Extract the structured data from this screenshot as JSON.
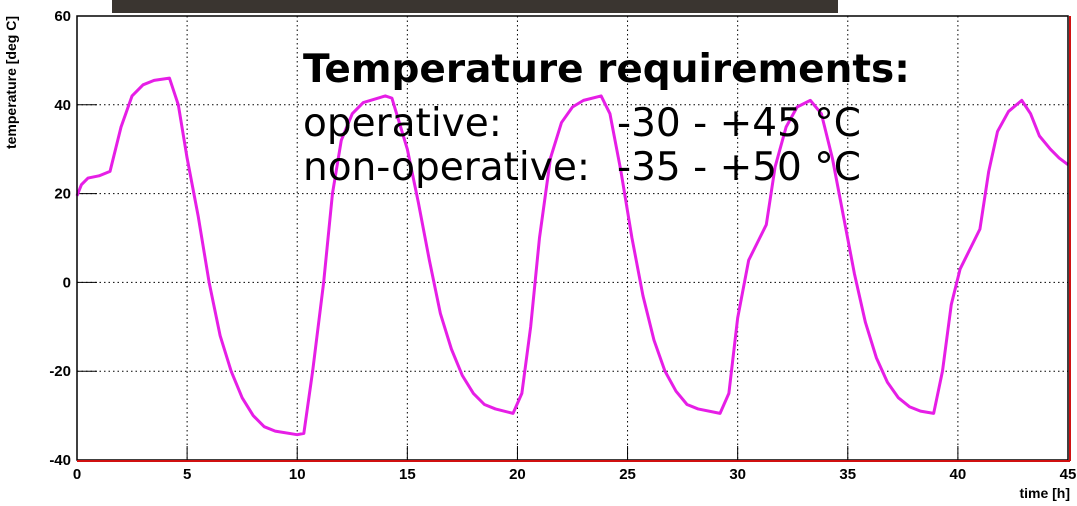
{
  "chart_data": {
    "type": "line",
    "x_label": "time [h]",
    "y_label": "temperature [deg C]",
    "xlim": [
      0,
      45
    ],
    "ylim": [
      -40,
      60
    ],
    "xticks": [
      0,
      5,
      10,
      15,
      20,
      25,
      30,
      35,
      40,
      45
    ],
    "yticks": [
      -40,
      -20,
      0,
      20,
      40,
      60
    ],
    "grid": true,
    "annotation": {
      "title": "Temperature requirements:",
      "rows": [
        {
          "label": "operative:",
          "value": "-30 - +45 °C"
        },
        {
          "label": "non-operative:",
          "value": "-35 - +50 °C"
        }
      ]
    },
    "series": [
      {
        "color": "#e61ee6",
        "x": [
          0,
          0.2,
          0.5,
          1,
          1.5,
          2,
          2.5,
          3,
          3.5,
          4.2,
          4.6,
          5,
          5.5,
          6,
          6.5,
          7,
          7.5,
          8,
          8.5,
          9,
          10,
          10.3,
          10.7,
          11.2,
          11.6,
          12,
          12.5,
          13,
          14,
          14.3,
          15,
          15.5,
          16,
          16.5,
          17,
          17.5,
          18,
          18.5,
          19,
          19.8,
          20.2,
          20.6,
          21,
          21.5,
          22,
          22.5,
          23,
          23.8,
          24.2,
          24.7,
          25.2,
          25.7,
          26.2,
          26.7,
          27.2,
          27.7,
          28.2,
          29.2,
          29.6,
          30,
          30.5,
          31,
          31.3,
          31.7,
          32.2,
          32.7,
          33.3,
          33.8,
          34.3,
          34.8,
          35.3,
          35.8,
          36.3,
          36.8,
          37.3,
          37.8,
          38.3,
          38.9,
          39.3,
          39.7,
          40.1,
          40.6,
          41,
          41.4,
          41.8,
          42.3,
          42.9,
          43.3,
          43.7,
          44.2,
          44.6,
          45
        ],
        "values": [
          19.5,
          22,
          23.5,
          24,
          25,
          35,
          42,
          44.5,
          45.5,
          46,
          40,
          28,
          15,
          0,
          -12,
          -20,
          -26,
          -30,
          -32.5,
          -33.5,
          -34.3,
          -34,
          -20,
          0,
          20,
          32,
          38,
          40.5,
          42,
          41.5,
          30,
          18,
          5,
          -7,
          -15,
          -21,
          -25,
          -27.5,
          -28.5,
          -29.5,
          -25,
          -10,
          10,
          28,
          36,
          39.5,
          41,
          42,
          38,
          25,
          10,
          -3,
          -13,
          -20,
          -24.5,
          -27.5,
          -28.5,
          -29.5,
          -25,
          -8,
          5,
          10,
          13,
          26,
          35,
          39.5,
          41,
          38,
          28,
          15,
          2,
          -9,
          -17,
          -22.5,
          -26,
          -28,
          -29,
          -29.5,
          -20,
          -5,
          3,
          8,
          12,
          25,
          34,
          38.5,
          41,
          38,
          33,
          30,
          28,
          26.5
        ]
      }
    ]
  }
}
